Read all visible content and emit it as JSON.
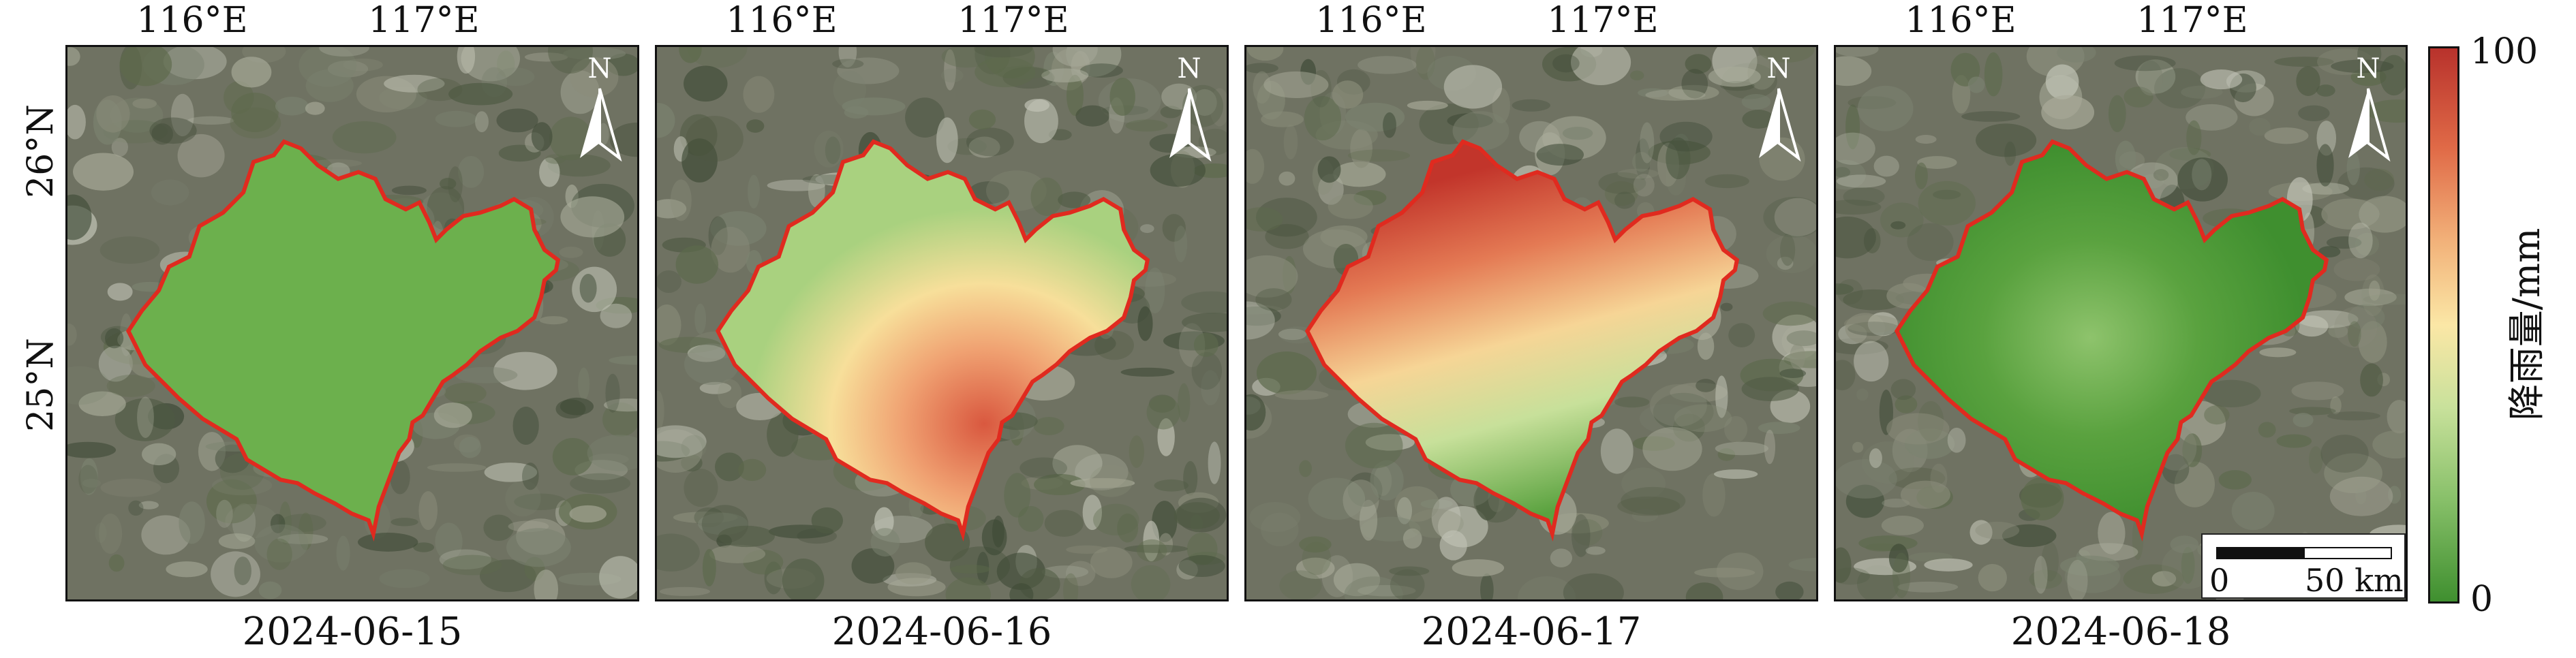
{
  "axes": {
    "lon_ticks": [
      "116°E",
      "117°E"
    ],
    "lat_ticks": [
      "26°N",
      "25°N"
    ]
  },
  "panels": [
    {
      "date": "2024-06-15"
    },
    {
      "date": "2024-06-16"
    },
    {
      "date": "2024-06-17"
    },
    {
      "date": "2024-06-18"
    }
  ],
  "colorbar": {
    "title": "降雨量/mm",
    "max_label": "100",
    "min_label": "0",
    "range": [
      0,
      100
    ],
    "colors": [
      "#3f8f2f",
      "#86bf68",
      "#c8e19b",
      "#fbe7a6",
      "#f2b27a",
      "#e06a47",
      "#b8322c"
    ]
  },
  "scale_bar": {
    "start_label": "0",
    "end_label": "50 km"
  },
  "north_arrow": {
    "label": "N",
    "icon": "north-arrow-icon"
  },
  "colors": {
    "boundary": "#e02a1f",
    "frame": "#111111"
  }
}
